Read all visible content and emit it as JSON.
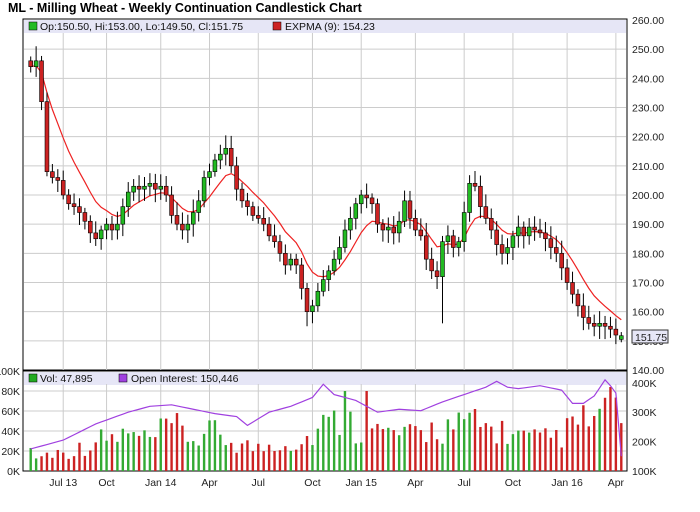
{
  "title": "ML - Milling Wheat - Weekly Continuation Candlestick Chart",
  "colors": {
    "up": "#22bb22",
    "down": "#cc2222",
    "ema": "#ee2222",
    "open_interest": "#a040e0",
    "panel_bg": "#e6e6f6",
    "grid": "#cccccc"
  },
  "price_legend": {
    "ohlc": "Op:150.50, Hi:153.00, Lo:149.50, Cl:151.75",
    "ema": "EXPMA (9): 154.23"
  },
  "last_price_label": "151.75",
  "volume_legend": {
    "vol": "Vol: 47,895",
    "oi": "Open Interest: 150,446"
  },
  "chart_data": [
    {
      "type": "candlestick",
      "title": "ML - Milling Wheat - Weekly Continuation Candlestick Chart",
      "ylim": [
        140,
        260
      ],
      "y_ticks": [
        "140.00",
        "150.00",
        "160.00",
        "170.00",
        "180.00",
        "190.00",
        "200.00",
        "210.00",
        "220.00",
        "230.00",
        "240.00",
        "250.00",
        "260.00"
      ],
      "x_ticks": [
        "Jul 13",
        "Oct",
        "Jan 14",
        "Apr",
        "Jul",
        "Oct",
        "Jan 15",
        "Apr",
        "Jul",
        "Oct",
        "Jan 16",
        "Apr"
      ],
      "grid": true,
      "legend": "top-left",
      "series": [
        {
          "name": "Op:150.50, Hi:153.00, Lo:149.50, Cl:151.75",
          "anchors": [
            [
              0,
              244
            ],
            [
              1,
              246
            ],
            [
              2,
              232
            ],
            [
              3,
              208
            ],
            [
              4,
              206
            ],
            [
              5,
              205
            ],
            [
              6,
              200
            ],
            [
              7,
              197
            ],
            [
              8,
              196
            ],
            [
              9,
              194
            ],
            [
              10,
              191
            ],
            [
              11,
              187
            ],
            [
              12,
              185
            ],
            [
              13,
              188
            ],
            [
              14,
              190
            ],
            [
              15,
              188
            ],
            [
              16,
              190
            ],
            [
              17,
              196
            ],
            [
              18,
              201
            ],
            [
              19,
              203
            ],
            [
              20,
              202
            ],
            [
              21,
              203
            ],
            [
              22,
              204
            ],
            [
              23,
              202
            ],
            [
              24,
              203
            ],
            [
              25,
              200
            ],
            [
              26,
              193
            ],
            [
              27,
              190
            ],
            [
              28,
              188
            ],
            [
              29,
              190
            ],
            [
              30,
              194
            ],
            [
              31,
              198
            ],
            [
              32,
              206
            ],
            [
              33,
              208
            ],
            [
              34,
              212
            ],
            [
              35,
              214
            ],
            [
              36,
              216
            ],
            [
              37,
              210
            ],
            [
              38,
              202
            ],
            [
              39,
              198
            ],
            [
              40,
              196
            ],
            [
              41,
              193
            ],
            [
              42,
              192
            ],
            [
              43,
              190
            ],
            [
              44,
              186
            ],
            [
              45,
              184
            ],
            [
              46,
              180
            ],
            [
              47,
              176
            ],
            [
              48,
              178
            ],
            [
              49,
              176
            ],
            [
              50,
              168
            ],
            [
              51,
              160
            ],
            [
              52,
              162
            ],
            [
              53,
              167
            ],
            [
              54,
              171
            ],
            [
              55,
              174
            ],
            [
              56,
              178
            ],
            [
              57,
              182
            ],
            [
              58,
              188
            ],
            [
              59,
              192
            ],
            [
              60,
              197
            ],
            [
              61,
              200
            ],
            [
              62,
              199
            ],
            [
              63,
              197
            ],
            [
              64,
              190
            ],
            [
              65,
              188
            ],
            [
              66,
              189
            ],
            [
              67,
              187
            ],
            [
              68,
              191
            ],
            [
              69,
              198
            ],
            [
              70,
              192
            ],
            [
              71,
              188
            ],
            [
              72,
              186
            ],
            [
              73,
              178
            ],
            [
              74,
              174
            ],
            [
              75,
              172
            ],
            [
              76,
              184
            ],
            [
              77,
              186
            ],
            [
              78,
              182
            ],
            [
              79,
              184
            ],
            [
              80,
              194
            ],
            [
              81,
              204
            ],
            [
              82,
              203
            ],
            [
              83,
              196
            ],
            [
              84,
              192
            ],
            [
              85,
              188
            ],
            [
              86,
              183
            ],
            [
              87,
              180
            ],
            [
              88,
              182
            ],
            [
              89,
              186
            ],
            [
              90,
              189
            ],
            [
              91,
              186
            ],
            [
              92,
              189
            ],
            [
              93,
              188
            ],
            [
              94,
              187
            ],
            [
              95,
              185
            ],
            [
              96,
              182
            ],
            [
              97,
              180
            ],
            [
              98,
              175
            ],
            [
              99,
              170
            ],
            [
              100,
              166
            ],
            [
              101,
              162
            ],
            [
              102,
              158
            ],
            [
              103,
              156
            ],
            [
              104,
              155
            ],
            [
              105,
              156
            ],
            [
              106,
              155
            ],
            [
              107,
              154
            ],
            [
              108,
              152
            ],
            [
              109,
              151.75
            ]
          ],
          "last": {
            "open": 150.5,
            "high": 153.0,
            "low": 149.5,
            "close": 151.75
          }
        },
        {
          "name": "EXPMA (9): 154.23",
          "type": "line"
        }
      ]
    },
    {
      "type": "bar",
      "y_ticks_left": [
        "0K",
        "20K",
        "40K",
        "60K",
        "80K",
        "100K"
      ],
      "y_ticks_right": [
        "100K",
        "200K",
        "300K",
        "400K"
      ],
      "ylim_left": [
        0,
        100000
      ],
      "ylim_right": [
        100000,
        440000
      ],
      "series": [
        {
          "name": "Vol: 47,895",
          "anchors": [
            [
              0,
              22000
            ],
            [
              1,
              14000
            ],
            [
              4,
              18000
            ],
            [
              8,
              20000
            ],
            [
              12,
              30000
            ],
            [
              18,
              36000
            ],
            [
              22,
              30000
            ],
            [
              26,
              45000
            ],
            [
              30,
              32000
            ],
            [
              34,
              38000
            ],
            [
              38,
              28000
            ],
            [
              42,
              22000
            ],
            [
              46,
              30000
            ],
            [
              50,
              28000
            ],
            [
              54,
              46000
            ],
            [
              58,
              50000
            ],
            [
              62,
              40000
            ],
            [
              66,
              38000
            ],
            [
              70,
              34000
            ],
            [
              74,
              42000
            ],
            [
              78,
              44000
            ],
            [
              82,
              44000
            ],
            [
              86,
              42000
            ],
            [
              90,
              34000
            ],
            [
              94,
              30000
            ],
            [
              98,
              36000
            ],
            [
              102,
              50000
            ],
            [
              106,
              54000
            ],
            [
              107,
              84000
            ],
            [
              109,
              47895
            ]
          ],
          "spikes": {
            "58": 80000,
            "62": 80000,
            "82": 62000,
            "107": 84000
          }
        },
        {
          "name": "Open Interest: 150,446",
          "type": "line",
          "anchors": [
            [
              0,
              175000
            ],
            [
              6,
              205000
            ],
            [
              12,
              260000
            ],
            [
              18,
              300000
            ],
            [
              22,
              320000
            ],
            [
              26,
              325000
            ],
            [
              30,
              310000
            ],
            [
              34,
              295000
            ],
            [
              38,
              285000
            ],
            [
              40,
              255000
            ],
            [
              44,
              300000
            ],
            [
              48,
              320000
            ],
            [
              52,
              350000
            ],
            [
              54,
              395000
            ],
            [
              56,
              360000
            ],
            [
              60,
              340000
            ],
            [
              64,
              300000
            ],
            [
              68,
              310000
            ],
            [
              72,
              305000
            ],
            [
              76,
              335000
            ],
            [
              80,
              360000
            ],
            [
              84,
              385000
            ],
            [
              86,
              405000
            ],
            [
              88,
              385000
            ],
            [
              90,
              380000
            ],
            [
              94,
              390000
            ],
            [
              98,
              375000
            ],
            [
              100,
              330000
            ],
            [
              102,
              330000
            ],
            [
              104,
              355000
            ],
            [
              106,
              410000
            ],
            [
              107,
              390000
            ],
            [
              108,
              365000
            ],
            [
              109,
              150446
            ]
          ]
        }
      ]
    }
  ]
}
